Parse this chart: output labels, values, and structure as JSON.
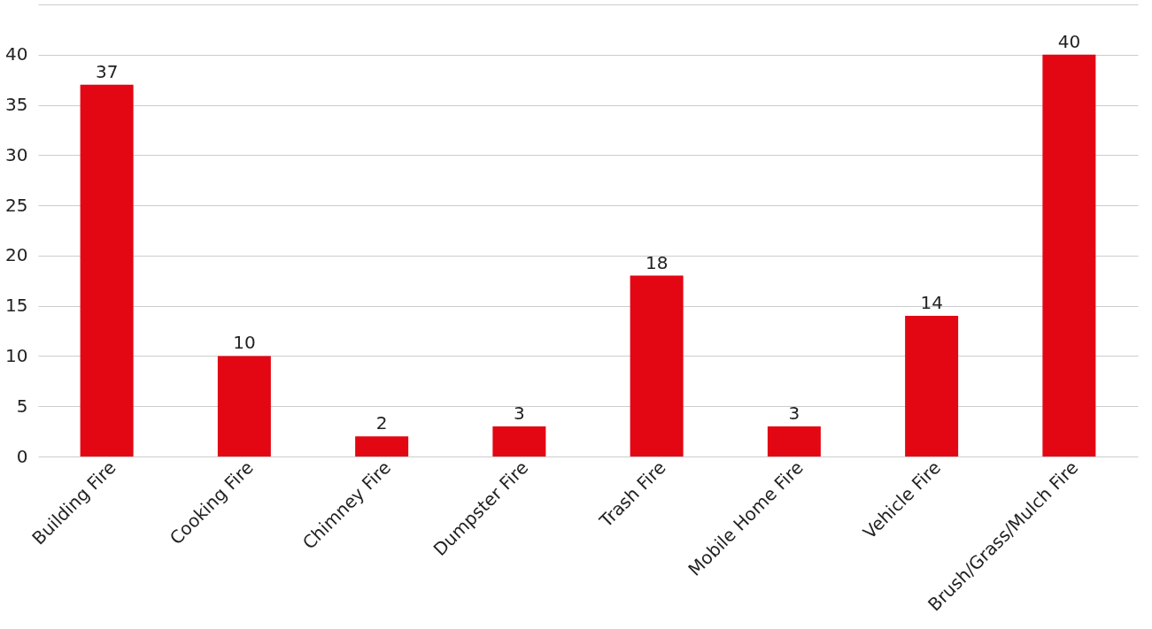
{
  "chart_data": {
    "type": "bar",
    "categories": [
      "Building Fire",
      "Cooking Fire",
      "Chimney Fire",
      "Dumpster Fire",
      "Trash Fire",
      "Mobile Home Fire",
      "Vehicle Fire",
      "Brush/Grass/Mulch Fire"
    ],
    "values": [
      37,
      10,
      2,
      3,
      18,
      3,
      14,
      40
    ],
    "color": "#e30613",
    "ylim": [
      0,
      45
    ],
    "yticks": [
      0,
      5,
      10,
      15,
      20,
      25,
      30,
      35,
      40,
      {
        "value": 45,
        "label": null
      }
    ],
    "grid": "y",
    "data_labels": true
  }
}
